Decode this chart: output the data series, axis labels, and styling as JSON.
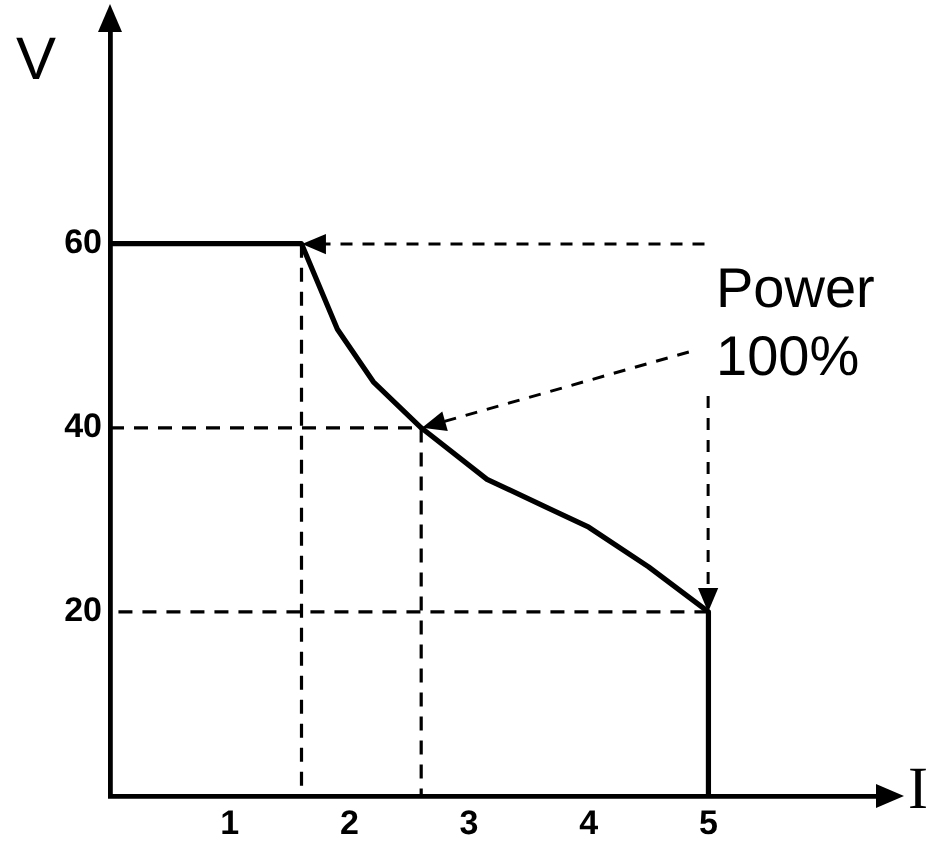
{
  "chart_data": {
    "type": "line",
    "xlabel": "I",
    "ylabel": "V",
    "xlim": [
      0,
      6.4
    ],
    "ylim": [
      0,
      83
    ],
    "xticks": [
      1,
      2,
      3,
      4,
      5
    ],
    "yticks": [
      20,
      40,
      60
    ],
    "grid": false,
    "legend": false,
    "marker": "none",
    "annotations": [
      "Power 100%"
    ],
    "series": [
      {
        "color": "#000000",
        "line_style": "solid",
        "x": [
          0,
          1.6,
          1.9,
          2.2,
          2.6,
          3.15,
          4,
          4.5,
          5,
          5
        ],
        "values": [
          60,
          60,
          50.7,
          45,
          40,
          34.4,
          29.2,
          24.9,
          20,
          0
        ]
      },
      {
        "color": "#000000",
        "line_style": "dashed",
        "x": [
          1.6,
          1.6
        ],
        "values": [
          60,
          0
        ]
      },
      {
        "color": "#000000",
        "line_style": "dashed",
        "x": [
          0,
          2.6,
          2.6
        ],
        "values": [
          40,
          40,
          0
        ]
      },
      {
        "color": "#000000",
        "line_style": "dashed",
        "x": [
          5,
          0
        ],
        "values": [
          20,
          20
        ]
      }
    ]
  }
}
